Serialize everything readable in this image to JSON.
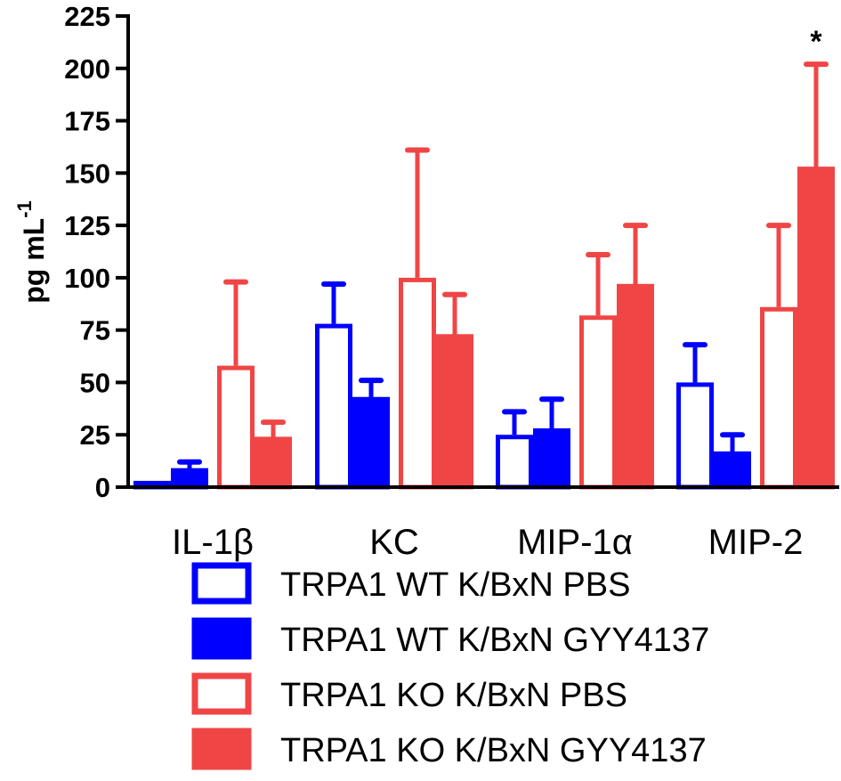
{
  "chart_data": {
    "type": "bar",
    "title": "",
    "xlabel": "",
    "ylabel": "pg mL",
    "ylabel_sup": "-1",
    "ylim": [
      0,
      225
    ],
    "yticks": [
      0,
      25,
      50,
      75,
      100,
      125,
      150,
      175,
      200,
      225
    ],
    "categories": [
      "IL-1β",
      "KC",
      "MIP-1α",
      "MIP-2"
    ],
    "series": [
      {
        "name": "TRPA1 WT K/BxN PBS",
        "color": "#0000ff",
        "filled": false,
        "values": [
          3,
          78,
          25,
          50
        ],
        "errors": [
          0,
          19,
          11,
          18
        ]
      },
      {
        "name": "TRPA1 WT K/BxN GYY4137",
        "color": "#0000ff",
        "filled": true,
        "values": [
          8,
          42,
          27,
          16
        ],
        "errors": [
          4,
          9,
          15,
          9
        ]
      },
      {
        "name": "TRPA1 KO K/BxN PBS",
        "color": "#f04545",
        "filled": false,
        "values": [
          58,
          100,
          82,
          86
        ],
        "errors": [
          40,
          61,
          29,
          39
        ]
      },
      {
        "name": "TRPA1 KO K/BxN GYY4137",
        "color": "#f04545",
        "filled": true,
        "values": [
          23,
          72,
          96,
          152
        ],
        "errors": [
          8,
          20,
          29,
          50
        ]
      }
    ],
    "annotations": [
      {
        "category": "MIP-2",
        "series": "TRPA1 KO K/BxN GYY4137",
        "text": "*"
      }
    ],
    "legend_position": "bottom"
  }
}
